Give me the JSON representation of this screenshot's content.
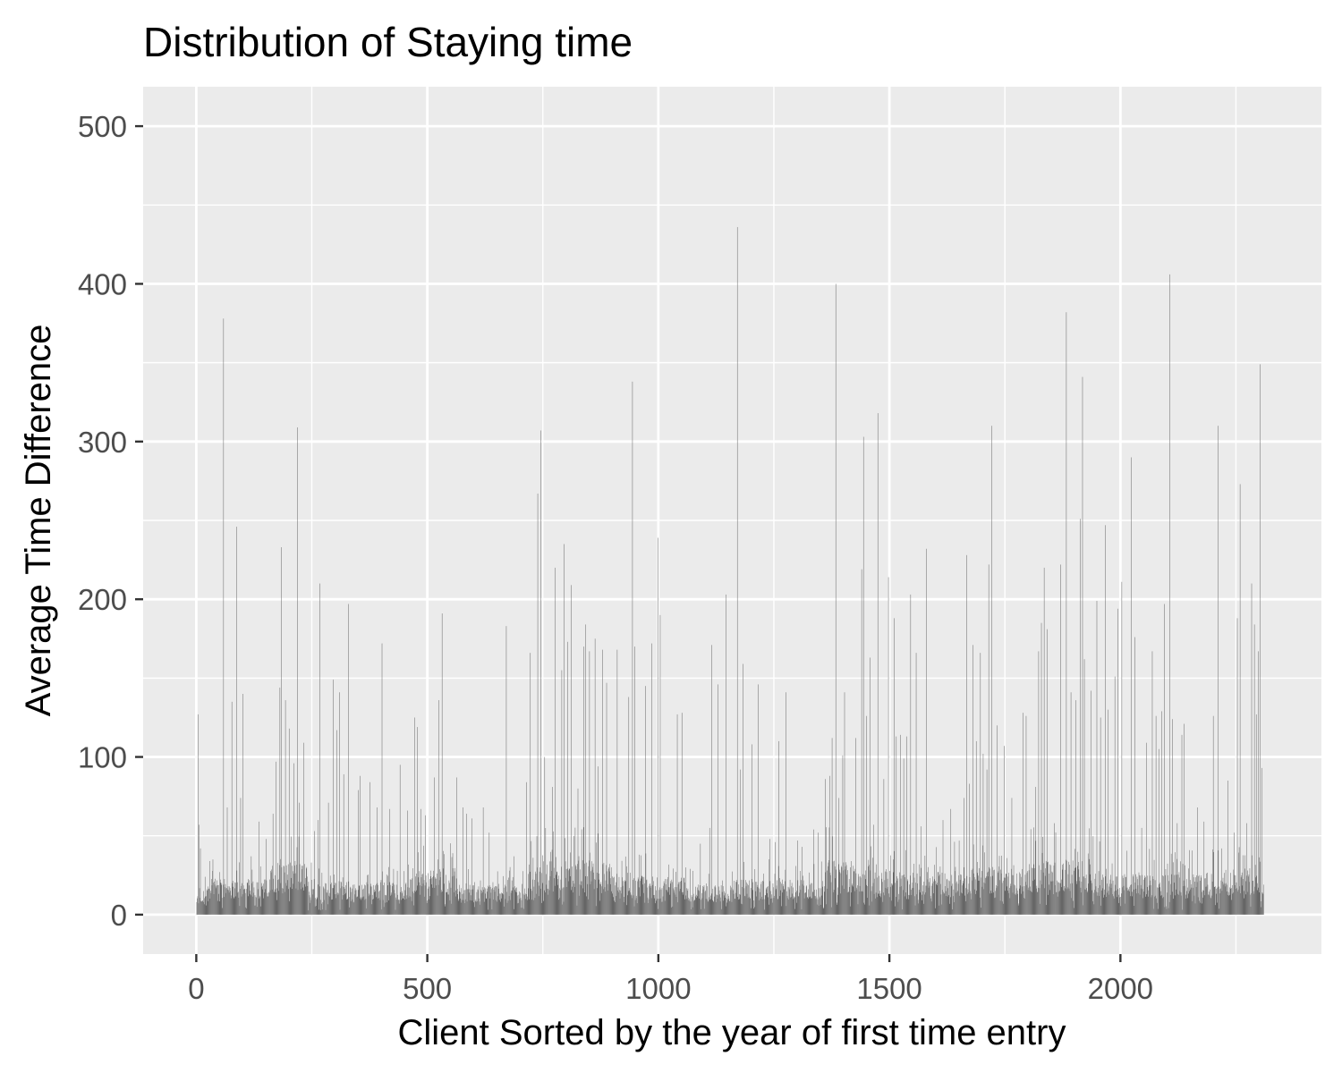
{
  "chart_data": {
    "type": "bar",
    "title": "Distribution of Staying time",
    "xlabel": "Client Sorted by the year of first time entry",
    "ylabel": "Average Time Difference",
    "xlim": [
      -115,
      2435
    ],
    "ylim": [
      -25,
      525
    ],
    "x_ticks": [
      0,
      500,
      1000,
      1500,
      2000
    ],
    "y_ticks": [
      0,
      100,
      200,
      300,
      400,
      500
    ],
    "x_tick_labels": [
      "0",
      "500",
      "1000",
      "1500",
      "2000"
    ],
    "y_tick_labels": [
      "0",
      "100",
      "200",
      "300",
      "400",
      "500"
    ],
    "grid": true,
    "legend": "none",
    "n_clients": 2310,
    "background_color": "#ebebeb",
    "bar_color": "#595959",
    "grid_color": "#ffffff",
    "baseline_bars": [
      [
        0,
        20,
        6,
        14
      ],
      [
        20,
        160,
        10,
        26
      ],
      [
        160,
        240,
        14,
        38
      ],
      [
        240,
        460,
        9,
        24
      ],
      [
        460,
        560,
        12,
        34
      ],
      [
        560,
        720,
        8,
        22
      ],
      [
        720,
        900,
        14,
        40
      ],
      [
        900,
        1060,
        10,
        28
      ],
      [
        1060,
        1160,
        8,
        22
      ],
      [
        1160,
        1360,
        9,
        26
      ],
      [
        1360,
        1460,
        14,
        40
      ],
      [
        1460,
        1640,
        11,
        32
      ],
      [
        1640,
        1800,
        13,
        36
      ],
      [
        1800,
        1960,
        14,
        40
      ],
      [
        1960,
        2200,
        10,
        30
      ],
      [
        2200,
        2310,
        12,
        34
      ]
    ],
    "peaks": [
      [
        3,
        127
      ],
      [
        5,
        57
      ],
      [
        8,
        42
      ],
      [
        18,
        24
      ],
      [
        28,
        34
      ],
      [
        35,
        35
      ],
      [
        50,
        27
      ],
      [
        58,
        378
      ],
      [
        66,
        68
      ],
      [
        76,
        135
      ],
      [
        86,
        246
      ],
      [
        95,
        74
      ],
      [
        100,
        140
      ],
      [
        118,
        37
      ],
      [
        135,
        59
      ],
      [
        150,
        48
      ],
      [
        165,
        64
      ],
      [
        172,
        97
      ],
      [
        180,
        144
      ],
      [
        183,
        233
      ],
      [
        192,
        136
      ],
      [
        200,
        118
      ],
      [
        210,
        96
      ],
      [
        218,
        309
      ],
      [
        222,
        71
      ],
      [
        232,
        109
      ],
      [
        248,
        33
      ],
      [
        255,
        53
      ],
      [
        262,
        60
      ],
      [
        266,
        210
      ],
      [
        285,
        71
      ],
      [
        295,
        149
      ],
      [
        303,
        117
      ],
      [
        309,
        141
      ],
      [
        318,
        89
      ],
      [
        328,
        197
      ],
      [
        350,
        79
      ],
      [
        354,
        88
      ],
      [
        375,
        84
      ],
      [
        390,
        68
      ],
      [
        401,
        172
      ],
      [
        418,
        67
      ],
      [
        440,
        95
      ],
      [
        456,
        66
      ],
      [
        472,
        125
      ],
      [
        478,
        119
      ],
      [
        485,
        67
      ],
      [
        495,
        63
      ],
      [
        514,
        87
      ],
      [
        524,
        136
      ],
      [
        531,
        191
      ],
      [
        563,
        87
      ],
      [
        576,
        68
      ],
      [
        584,
        64
      ],
      [
        596,
        61
      ],
      [
        620,
        68
      ],
      [
        633,
        52
      ],
      [
        670,
        183
      ],
      [
        687,
        37
      ],
      [
        714,
        84
      ],
      [
        722,
        166
      ],
      [
        738,
        267
      ],
      [
        745,
        307
      ],
      [
        753,
        100
      ],
      [
        770,
        81
      ],
      [
        776,
        220
      ],
      [
        790,
        155
      ],
      [
        795,
        235
      ],
      [
        803,
        173
      ],
      [
        810,
        209
      ],
      [
        825,
        80
      ],
      [
        838,
        170
      ],
      [
        842,
        184
      ],
      [
        850,
        167
      ],
      [
        862,
        175
      ],
      [
        869,
        94
      ],
      [
        878,
        168
      ],
      [
        887,
        147
      ],
      [
        910,
        168
      ],
      [
        935,
        138
      ],
      [
        943,
        338
      ],
      [
        948,
        170
      ],
      [
        971,
        145
      ],
      [
        985,
        172
      ],
      [
        998,
        239
      ],
      [
        1003,
        190
      ],
      [
        1040,
        127
      ],
      [
        1050,
        128
      ],
      [
        1090,
        45
      ],
      [
        1110,
        55
      ],
      [
        1115,
        171
      ],
      [
        1128,
        146
      ],
      [
        1145,
        203
      ],
      [
        1170,
        436
      ],
      [
        1177,
        92
      ],
      [
        1182,
        159
      ],
      [
        1202,
        108
      ],
      [
        1215,
        146
      ],
      [
        1240,
        48
      ],
      [
        1252,
        46
      ],
      [
        1260,
        110
      ],
      [
        1275,
        141
      ],
      [
        1300,
        47
      ],
      [
        1310,
        43
      ],
      [
        1335,
        54
      ],
      [
        1345,
        52
      ],
      [
        1360,
        86
      ],
      [
        1370,
        88
      ],
      [
        1375,
        112
      ],
      [
        1383,
        400
      ],
      [
        1390,
        74
      ],
      [
        1398,
        101
      ],
      [
        1402,
        141
      ],
      [
        1426,
        112
      ],
      [
        1439,
        219
      ],
      [
        1443,
        303
      ],
      [
        1450,
        126
      ],
      [
        1457,
        163
      ],
      [
        1465,
        57
      ],
      [
        1474,
        318
      ],
      [
        1487,
        86
      ],
      [
        1497,
        214
      ],
      [
        1510,
        188
      ],
      [
        1514,
        113
      ],
      [
        1523,
        114
      ],
      [
        1530,
        99
      ],
      [
        1536,
        113
      ],
      [
        1545,
        203
      ],
      [
        1557,
        166
      ],
      [
        1567,
        56
      ],
      [
        1579,
        232
      ],
      [
        1615,
        60
      ],
      [
        1632,
        67
      ],
      [
        1660,
        74
      ],
      [
        1666,
        228
      ],
      [
        1672,
        83
      ],
      [
        1680,
        171
      ],
      [
        1687,
        110
      ],
      [
        1696,
        166
      ],
      [
        1702,
        102
      ],
      [
        1710,
        92
      ],
      [
        1714,
        222
      ],
      [
        1720,
        310
      ],
      [
        1732,
        120
      ],
      [
        1748,
        107
      ],
      [
        1764,
        74
      ],
      [
        1788,
        128
      ],
      [
        1795,
        126
      ],
      [
        1815,
        81
      ],
      [
        1822,
        167
      ],
      [
        1828,
        185
      ],
      [
        1834,
        220
      ],
      [
        1840,
        181
      ],
      [
        1856,
        58
      ],
      [
        1870,
        222
      ],
      [
        1882,
        382
      ],
      [
        1892,
        141
      ],
      [
        1903,
        136
      ],
      [
        1912,
        251
      ],
      [
        1917,
        341
      ],
      [
        1921,
        162
      ],
      [
        1935,
        142
      ],
      [
        1948,
        199
      ],
      [
        1956,
        125
      ],
      [
        1966,
        247
      ],
      [
        1972,
        130
      ],
      [
        1987,
        151
      ],
      [
        1994,
        194
      ],
      [
        2002,
        211
      ],
      [
        2023,
        290
      ],
      [
        2030,
        176
      ],
      [
        2045,
        55
      ],
      [
        2055,
        109
      ],
      [
        2068,
        167
      ],
      [
        2076,
        126
      ],
      [
        2082,
        105
      ],
      [
        2088,
        129
      ],
      [
        2094,
        197
      ],
      [
        2106,
        406
      ],
      [
        2112,
        124
      ],
      [
        2122,
        58
      ],
      [
        2132,
        114
      ],
      [
        2137,
        121
      ],
      [
        2166,
        68
      ],
      [
        2180,
        59
      ],
      [
        2200,
        126
      ],
      [
        2210,
        310
      ],
      [
        2218,
        42
      ],
      [
        2232,
        85
      ],
      [
        2245,
        52
      ],
      [
        2252,
        188
      ],
      [
        2258,
        273
      ],
      [
        2272,
        58
      ],
      [
        2283,
        210
      ],
      [
        2289,
        184
      ],
      [
        2293,
        127
      ],
      [
        2297,
        167
      ],
      [
        2301,
        349
      ],
      [
        2305,
        93
      ],
      [
        2309,
        19
      ]
    ]
  }
}
